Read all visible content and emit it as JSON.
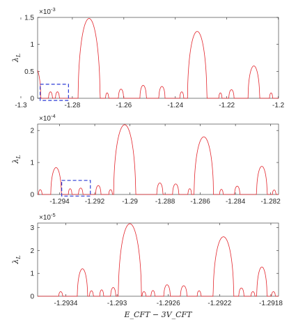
{
  "chart_data": [
    {
      "type": "line",
      "ylabel_main": "λ",
      "ylabel_sub": "L",
      "xlabel": "",
      "xlim": [
        -1.2935,
        -1.1999
      ],
      "ylim": [
        0,
        1.5
      ],
      "multiplier": {
        "base": "×10",
        "exp": "-3"
      },
      "xticks": [
        -1.3,
        -1.28,
        -1.26,
        -1.24,
        -1.22,
        -1.2
      ],
      "xtick_labels": [
        "-1.3",
        "-1.28",
        "-1.26",
        "-1.24",
        "-1.22",
        "-1.2"
      ],
      "yticks": [
        0,
        0.5,
        1,
        1.5
      ],
      "ytick_labels": [
        "0",
        "0.5",
        "1",
        "1.5"
      ],
      "color": "#e3242b",
      "peaks": [
        {
          "x": -1.2735,
          "h": 1.48,
          "w": 0.0085
        },
        {
          "x": -1.2315,
          "h": 1.24,
          "w": 0.0075
        },
        {
          "x": -1.2945,
          "h": 0.58,
          "w": 0.0045
        },
        {
          "x": -1.2095,
          "h": 0.6,
          "w": 0.0045
        },
        {
          "x": -1.2525,
          "h": 0.24,
          "w": 0.0025
        },
        {
          "x": -1.2452,
          "h": 0.22,
          "w": 0.0024
        },
        {
          "x": -1.2611,
          "h": 0.17,
          "w": 0.002
        },
        {
          "x": -1.2182,
          "h": 0.16,
          "w": 0.002
        },
        {
          "x": -1.2858,
          "h": 0.12,
          "w": 0.0015
        },
        {
          "x": -1.2885,
          "h": 0.12,
          "w": 0.0015
        },
        {
          "x": -1.2375,
          "h": 0.12,
          "w": 0.0015
        },
        {
          "x": -1.2665,
          "h": 0.1,
          "w": 0.0012
        },
        {
          "x": -1.2225,
          "h": 0.1,
          "w": 0.0012
        },
        {
          "x": -1.2028,
          "h": 0.1,
          "w": 0.0012
        }
      ],
      "zoom_box": {
        "x0": -1.2925,
        "x1": -1.2815,
        "y0": -0.04,
        "y1": 0.26
      }
    },
    {
      "type": "line",
      "ylabel_main": "λ",
      "ylabel_sub": "L",
      "xlabel": "",
      "xlim": [
        -1.29525,
        -1.28155
      ],
      "ylim": [
        0,
        2.2
      ],
      "multiplier": {
        "base": "×10",
        "exp": "-4"
      },
      "xticks": [
        -1.294,
        -1.292,
        -1.29,
        -1.288,
        -1.286,
        -1.284,
        -1.282
      ],
      "xtick_labels": [
        "-1.294",
        "-1.292",
        "-1.29",
        "-1.288",
        "-1.286",
        "-1.284",
        "-1.282"
      ],
      "yticks": [
        0,
        1,
        2
      ],
      "ytick_labels": [
        "0",
        "1",
        "2"
      ],
      "color": "#e3242b",
      "peaks": [
        {
          "x": -1.2903,
          "h": 2.18,
          "w": 0.00125
        },
        {
          "x": -1.2858,
          "h": 1.8,
          "w": 0.0011
        },
        {
          "x": -1.2942,
          "h": 0.84,
          "w": 0.0006
        },
        {
          "x": -1.2825,
          "h": 0.88,
          "w": 0.0006
        },
        {
          "x": -1.2883,
          "h": 0.36,
          "w": 0.00035
        },
        {
          "x": -1.2874,
          "h": 0.33,
          "w": 0.00035
        },
        {
          "x": -1.2918,
          "h": 0.28,
          "w": 0.0003
        },
        {
          "x": -1.2839,
          "h": 0.26,
          "w": 0.0003
        },
        {
          "x": -1.2928,
          "h": 0.2,
          "w": 0.00025
        },
        {
          "x": -1.2934,
          "h": 0.18,
          "w": 0.0002
        },
        {
          "x": -1.2866,
          "h": 0.18,
          "w": 0.0002
        },
        {
          "x": -1.2848,
          "h": 0.16,
          "w": 0.0002
        },
        {
          "x": -1.2911,
          "h": 0.15,
          "w": 0.0002
        },
        {
          "x": -1.2951,
          "h": 0.15,
          "w": 0.0002
        },
        {
          "x": -1.2818,
          "h": 0.14,
          "w": 0.0002
        }
      ],
      "zoom_box": {
        "x0": -1.29388,
        "x1": -1.29225,
        "y0": -0.05,
        "y1": 0.44
      }
    },
    {
      "type": "line",
      "ylabel_main": "λ",
      "ylabel_sub": "L",
      "xlabel": "E_CFT − 3V_CFT",
      "xlim": [
        -1.29362,
        -1.29174
      ],
      "ylim": [
        0,
        3.2
      ],
      "multiplier": {
        "base": "×10",
        "exp": "-5"
      },
      "xticks": [
        -1.2934,
        -1.293,
        -1.2926,
        -1.2922,
        -1.2918
      ],
      "xtick_labels": [
        "-1.2934",
        "-1.293",
        "-1.2926",
        "-1.2922",
        "-1.2918"
      ],
      "yticks": [
        0,
        1,
        2,
        3
      ],
      "ytick_labels": [
        "0",
        "1",
        "2",
        "3"
      ],
      "color": "#e3242b",
      "peaks": [
        {
          "x": -1.2929,
          "h": 3.17,
          "w": 0.00018
        },
        {
          "x": -1.29217,
          "h": 2.6,
          "w": 0.00016
        },
        {
          "x": -1.29327,
          "h": 1.2,
          "w": 8e-05
        },
        {
          "x": -1.29187,
          "h": 1.28,
          "w": 8e-05
        },
        {
          "x": -1.29261,
          "h": 0.5,
          "w": 5e-05
        },
        {
          "x": -1.29248,
          "h": 0.46,
          "w": 5e-05
        },
        {
          "x": -1.29303,
          "h": 0.38,
          "w": 4e-05
        },
        {
          "x": -1.29203,
          "h": 0.36,
          "w": 4e-05
        },
        {
          "x": -1.29312,
          "h": 0.28,
          "w": 3e-05
        },
        {
          "x": -1.2932,
          "h": 0.24,
          "w": 3e-05
        },
        {
          "x": -1.29272,
          "h": 0.25,
          "w": 3e-05
        },
        {
          "x": -1.29236,
          "h": 0.24,
          "w": 3e-05
        },
        {
          "x": -1.29279,
          "h": 0.2,
          "w": 3e-05
        },
        {
          "x": -1.29194,
          "h": 0.2,
          "w": 3e-05
        },
        {
          "x": -1.29344,
          "h": 0.2,
          "w": 3e-05
        },
        {
          "x": -1.29178,
          "h": 0.2,
          "w": 3e-05
        }
      ]
    }
  ]
}
